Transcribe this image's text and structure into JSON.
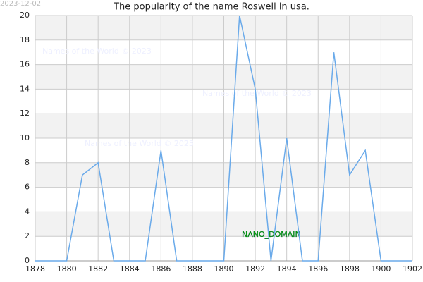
{
  "chart_data": {
    "type": "line",
    "title": "The popularity of the name Roswell in usa.",
    "date": "2023-12-02",
    "watermark": "Names of the World © 2023",
    "domain_label": "NANO_DOMAIN",
    "x": [
      1878,
      1879,
      1880,
      1881,
      1882,
      1883,
      1884,
      1885,
      1886,
      1887,
      1888,
      1889,
      1890,
      1891,
      1892,
      1893,
      1894,
      1895,
      1896,
      1897,
      1898,
      1899,
      1900,
      1901,
      1902
    ],
    "series": [
      {
        "color": "#6aaaea",
        "values": [
          0,
          0,
          0,
          7,
          8,
          0,
          0,
          0,
          9,
          0,
          0,
          0,
          0,
          20,
          14,
          0,
          10,
          0,
          0,
          17,
          7,
          9,
          0,
          0,
          0
        ]
      }
    ],
    "xlim": [
      1878,
      1902
    ],
    "xticks": [
      1878,
      1880,
      1882,
      1884,
      1886,
      1888,
      1890,
      1892,
      1894,
      1896,
      1898,
      1900,
      1902
    ],
    "ylim": [
      0,
      20
    ],
    "yticks": [
      0,
      2,
      4,
      6,
      8,
      10,
      12,
      14,
      16,
      18,
      20
    ],
    "grid": true
  }
}
